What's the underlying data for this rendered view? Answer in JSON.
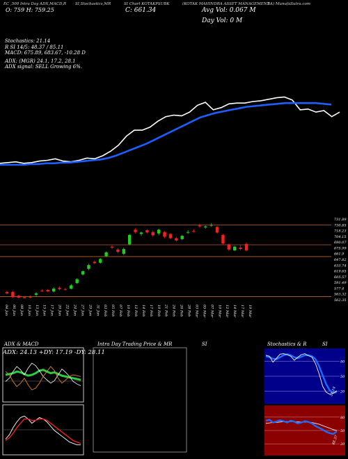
{
  "header": {
    "col1": "EC ,500 Intra Day ADX,MACD,R",
    "col2": "SI,Stochastics,MR",
    "col3": "SI Chart KOTAKPSUBK",
    "col4": "(KOTAK MAHINDRA ASSET MANAGEMENT",
    "col5": "BA) MunafaSutra.com",
    "open_line": "O: 759  H: 759.25",
    "close_line": "C: 661.34",
    "volume_line": "Avg Vol: 0.067  M",
    "dayvol_line": "Day Vol: 0   M"
  },
  "indicators": {
    "stoch": "Stochastics: 21.14",
    "rsi": "R       SI 14/5: 48.37 / 85.11",
    "macd": "MACD: 675.89,  683.67,  -10.28  D",
    "adx": "ADX:                        (MGR) 24.1,  17.2,  28.1",
    "signal": "ADX  signal: SELL Growing 6%."
  },
  "colors": {
    "bg": "#000000",
    "price_line": "#ffffff",
    "ema_line": "#1e5fff",
    "up": "#22cc22",
    "down": "#ee2222",
    "guide": "#c0622a",
    "stoch_bg": "#00008b",
    "rsi_bg": "#8b0000",
    "adx_green": "#2ecc40",
    "adx_orange": "#d9822b"
  },
  "chart_data": [
    {
      "type": "line",
      "name": "price-overview",
      "x": [
        0,
        1,
        2,
        3,
        4,
        5,
        6,
        7,
        8,
        9,
        10,
        11,
        12,
        13,
        14,
        15,
        16,
        17,
        18,
        19,
        20,
        21,
        22,
        23,
        24,
        25,
        26,
        27,
        28,
        29,
        30,
        31,
        32,
        33,
        34,
        35,
        36,
        37,
        38,
        39,
        40,
        41,
        42,
        43
      ],
      "series": [
        {
          "values": [
            654,
            655,
            656,
            654,
            655,
            657,
            658,
            660,
            657,
            656,
            658,
            661,
            660,
            664,
            670,
            678,
            690,
            698,
            698,
            702,
            710,
            716,
            718,
            717,
            722,
            731,
            735,
            725,
            728,
            733,
            734,
            734,
            736,
            737,
            739,
            741,
            742,
            738,
            725,
            726,
            722,
            724,
            716,
            722
          ]
        },
        {
          "values": [
            652,
            652,
            652,
            652,
            653,
            653,
            654,
            654,
            655,
            655,
            656,
            657,
            658,
            659,
            661,
            664,
            668,
            672,
            676,
            680,
            685,
            690,
            695,
            700,
            705,
            710,
            715,
            718,
            721,
            723,
            725,
            727,
            729,
            730,
            731,
            732,
            733,
            734,
            734,
            734,
            734,
            734,
            733,
            732
          ]
        }
      ],
      "ylim": [
        640,
        760
      ]
    },
    {
      "type": "candlestick",
      "name": "daily-candles",
      "x_labels": [
        "04 Jan",
        "06 Jan",
        "08 Jan",
        "10 Jan",
        "13 Jan",
        "15 Jan",
        "17 Jan",
        "20 Jan",
        "22 Jan",
        "24 Jan",
        "27 Jan",
        "29 Jan",
        "31 Jan",
        "03 Feb",
        "05 Feb",
        "07 Feb",
        "10 Feb",
        "12 Feb",
        "14 Feb",
        "17 Feb",
        "19 Feb",
        "21 Feb",
        "24 Feb",
        "26 Feb",
        "28 Feb",
        "03 Mar",
        "05 Mar",
        "07 Mar",
        "10 Mar",
        "12 Mar",
        "14 Mar",
        "17 Mar",
        "19 Mar"
      ],
      "y_ticks": [
        "731.89",
        "730.85",
        "718.23",
        "704.15",
        "690.07",
        "675.99",
        "661.9",
        "647.82",
        "633.74",
        "619.65",
        "605.57",
        "591.49",
        "577.4",
        "563.32",
        "562.35"
      ],
      "candles": [
        {
          "o": 576,
          "h": 578,
          "l": 571,
          "c": 573
        },
        {
          "o": 576,
          "h": 578,
          "l": 563,
          "c": 565
        },
        {
          "o": 568,
          "h": 570,
          "l": 563,
          "c": 564
        },
        {
          "o": 565,
          "h": 567,
          "l": 562,
          "c": 563
        },
        {
          "o": 566,
          "h": 568,
          "l": 563,
          "c": 564
        },
        {
          "o": 570,
          "h": 576,
          "l": 566,
          "c": 573
        },
        {
          "o": 579,
          "h": 582,
          "l": 576,
          "c": 578
        },
        {
          "o": 580,
          "h": 582,
          "l": 576,
          "c": 577
        },
        {
          "o": 577,
          "h": 586,
          "l": 575,
          "c": 583
        },
        {
          "o": 585,
          "h": 588,
          "l": 580,
          "c": 582
        },
        {
          "o": 582,
          "h": 585,
          "l": 579,
          "c": 581
        },
        {
          "o": 583,
          "h": 593,
          "l": 581,
          "c": 590
        },
        {
          "o": 595,
          "h": 605,
          "l": 593,
          "c": 603
        },
        {
          "o": 613,
          "h": 622,
          "l": 611,
          "c": 620
        },
        {
          "o": 625,
          "h": 636,
          "l": 622,
          "c": 633
        },
        {
          "o": 640,
          "h": 643,
          "l": 635,
          "c": 637
        },
        {
          "o": 638,
          "h": 648,
          "l": 636,
          "c": 646
        },
        {
          "o": 652,
          "h": 662,
          "l": 650,
          "c": 660
        },
        {
          "o": 672,
          "h": 675,
          "l": 667,
          "c": 670
        },
        {
          "o": 666,
          "h": 669,
          "l": 658,
          "c": 661
        },
        {
          "o": 657,
          "h": 670,
          "l": 654,
          "c": 667
        },
        {
          "o": 677,
          "h": 699,
          "l": 675,
          "c": 697
        },
        {
          "o": 708,
          "h": 711,
          "l": 700,
          "c": 703
        },
        {
          "o": 699,
          "h": 704,
          "l": 695,
          "c": 702
        },
        {
          "o": 707,
          "h": 709,
          "l": 700,
          "c": 702
        },
        {
          "o": 703,
          "h": 706,
          "l": 693,
          "c": 696
        },
        {
          "o": 700,
          "h": 710,
          "l": 696,
          "c": 708
        },
        {
          "o": 703,
          "h": 705,
          "l": 690,
          "c": 693
        },
        {
          "o": 699,
          "h": 701,
          "l": 688,
          "c": 690
        },
        {
          "o": 690,
          "h": 693,
          "l": 683,
          "c": 685
        },
        {
          "o": 688,
          "h": 697,
          "l": 686,
          "c": 695
        },
        {
          "o": 702,
          "h": 707,
          "l": 699,
          "c": 703
        },
        {
          "o": 705,
          "h": 709,
          "l": 702,
          "c": 704
        },
        {
          "o": 717,
          "h": 721,
          "l": 712,
          "c": 715
        },
        {
          "o": 713,
          "h": 717,
          "l": 710,
          "c": 715
        },
        {
          "o": 717,
          "h": 722,
          "l": 714,
          "c": 718
        },
        {
          "o": 714,
          "h": 716,
          "l": 700,
          "c": 702
        },
        {
          "o": 697,
          "h": 699,
          "l": 676,
          "c": 679
        },
        {
          "o": 677,
          "h": 679,
          "l": 663,
          "c": 666
        },
        {
          "o": 664,
          "h": 674,
          "l": 663,
          "c": 672
        },
        {
          "o": 670,
          "h": 675,
          "l": 664,
          "c": 667
        },
        {
          "o": 678,
          "h": 681,
          "l": 662,
          "c": 664
        }
      ],
      "guides": [
        718,
        676,
        651,
        566
      ]
    },
    {
      "type": "line",
      "name": "adx-macd",
      "title": "ADX  & MACD",
      "adx_readout": "ADX: 24.13  +DY: 17.19  -DY: 28.11",
      "series": [
        {
          "name": "adx",
          "values": [
            30,
            31,
            32,
            34,
            33,
            31,
            29,
            30,
            32,
            35,
            36,
            34,
            32,
            33,
            31,
            29,
            28,
            27,
            26,
            25,
            24
          ]
        },
        {
          "name": "di_plus",
          "values": [
            22,
            26,
            34,
            40,
            36,
            30,
            38,
            44,
            41,
            35,
            28,
            24,
            20,
            23,
            30,
            37,
            33,
            28,
            22,
            19,
            17
          ]
        },
        {
          "name": "di_minus",
          "values": [
            34,
            30,
            22,
            16,
            20,
            26,
            18,
            12,
            14,
            20,
            28,
            34,
            40,
            35,
            26,
            20,
            24,
            28,
            30,
            29,
            28
          ]
        },
        {
          "name": "macd",
          "values": [
            -6,
            -3,
            2,
            6,
            9,
            10,
            8,
            5,
            7,
            9,
            8,
            6,
            3,
            0,
            -2,
            -4,
            -6,
            -8,
            -9,
            -10,
            -10
          ]
        },
        {
          "name": "signal",
          "values": [
            -7,
            -5,
            -2,
            2,
            5,
            8,
            8,
            7,
            7,
            8,
            8,
            7,
            5,
            3,
            1,
            -1,
            -3,
            -5,
            -7,
            -8,
            -9
          ]
        }
      ]
    },
    {
      "type": "line",
      "name": "intraday",
      "title": "Intra  Day Trading Price  & MR",
      "title2": "SI",
      "series": []
    },
    {
      "type": "line",
      "name": "stoch-rsi",
      "title": "Stochastics & R",
      "title2": "SI",
      "stoch_ticks": [
        "80",
        "50",
        "20"
      ],
      "stoch_readout": "21.14",
      "rsi_ticks": [
        "80",
        "50",
        "20"
      ],
      "rsi_readout": "48.37",
      "series": [
        {
          "name": "stoch_k",
          "values": [
            92,
            90,
            78,
            86,
            94,
            95,
            93,
            90,
            82,
            88,
            93,
            95,
            91,
            88,
            75,
            55,
            30,
            18,
            14,
            16,
            21
          ]
        },
        {
          "name": "stoch_d",
          "values": [
            90,
            88,
            85,
            84,
            88,
            92,
            94,
            92,
            88,
            86,
            89,
            92,
            92,
            90,
            84,
            70,
            52,
            34,
            22,
            17,
            18
          ]
        },
        {
          "name": "rsi",
          "values": [
            72,
            74,
            68,
            70,
            73,
            71,
            68,
            72,
            70,
            66,
            68,
            71,
            69,
            66,
            60,
            56,
            52,
            47,
            44,
            42,
            48
          ]
        },
        {
          "name": "rsi_ma",
          "values": [
            66,
            67,
            68,
            68,
            69,
            70,
            70,
            70,
            70,
            69,
            69,
            69,
            69,
            68,
            66,
            64,
            61,
            58,
            55,
            52,
            50
          ]
        }
      ]
    }
  ]
}
